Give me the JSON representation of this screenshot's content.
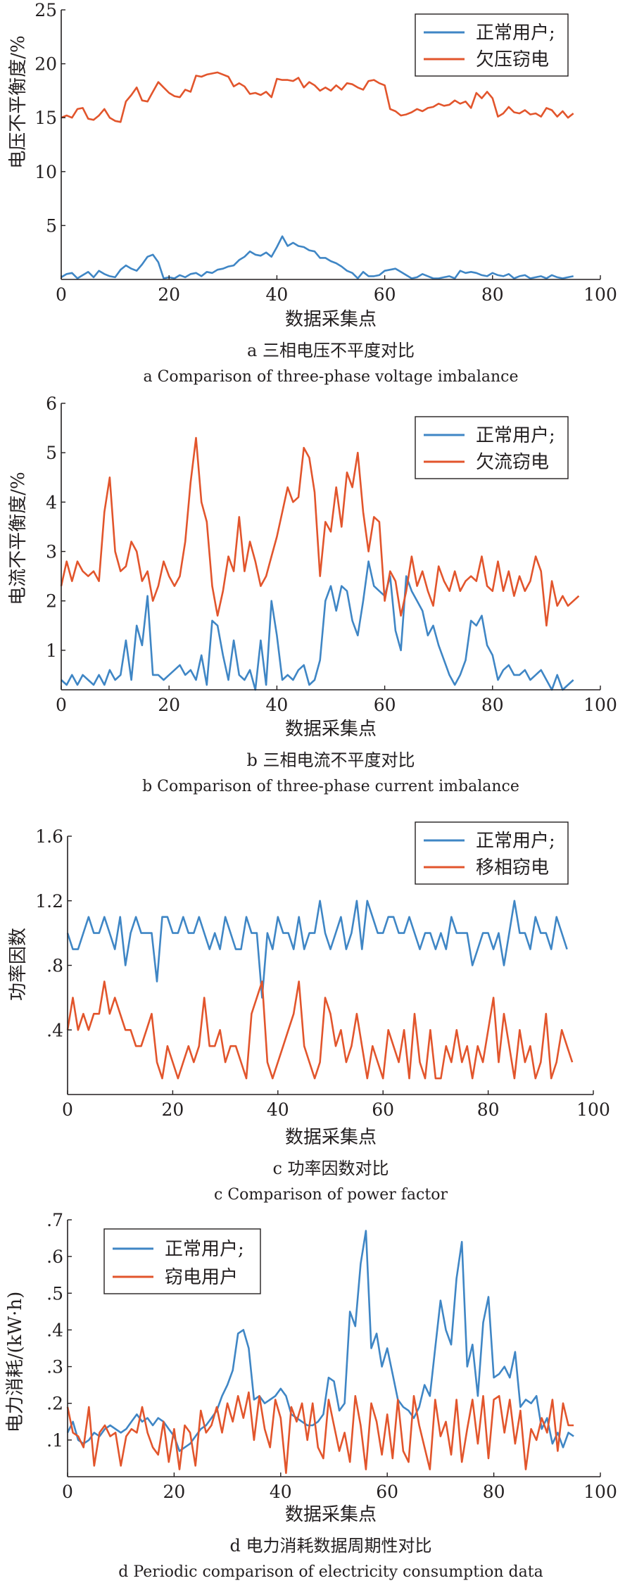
{
  "colors": {
    "blue": "#3f86c5",
    "red": "#e2552c",
    "axis": "#231f20"
  },
  "charts": [
    {
      "captions": {
        "cn": "a  三相电压不平度对比",
        "en": "a  Comparison of three-phase voltage imbalance"
      },
      "legend_position": "top-right"
    },
    {
      "captions": {
        "cn": "b  三相电流不平度对比",
        "en": "b  Comparison of three-phase current imbalance"
      },
      "legend_position": "top-right"
    },
    {
      "captions": {
        "cn": "c  功率因数对比",
        "en": "c  Comparison of power factor"
      },
      "legend_position": "top-right"
    },
    {
      "captions": {
        "cn": "d  电力消耗数据周期性对比",
        "en": "d  Periodic comparison of electricity consumption data"
      },
      "legend_position": "top-left"
    }
  ],
  "chart_data": [
    {
      "type": "line",
      "title": "",
      "xlabel": "数据采集点",
      "ylabel": "电压不平衡度/%",
      "xlim": [
        0,
        100
      ],
      "ylim": [
        0,
        25
      ],
      "xticks": [
        0,
        20,
        40,
        60,
        80,
        100
      ],
      "yticks": [
        5,
        10,
        15,
        20,
        25
      ],
      "grid": false,
      "series": [
        {
          "name": "正常用户;",
          "color": "#3f86c5",
          "values": [
            0.2,
            0.5,
            0.6,
            0.1,
            0.4,
            0.7,
            0.2,
            0.8,
            0.5,
            0.3,
            0.2,
            0.9,
            1.3,
            1.0,
            0.8,
            1.4,
            2.1,
            2.3,
            1.6,
            0.1,
            0.2,
            0.1,
            0.4,
            0.2,
            0.5,
            0.6,
            0.3,
            0.7,
            0.6,
            0.9,
            1.0,
            1.2,
            1.3,
            1.8,
            2.1,
            2.6,
            2.3,
            2.2,
            2.5,
            2.1,
            3.0,
            4.0,
            3.1,
            3.4,
            3.1,
            3.0,
            2.7,
            2.6,
            2.0,
            2.0,
            1.7,
            1.5,
            1.2,
            0.8,
            0.6,
            0.1,
            0.7,
            0.3,
            0.3,
            0.4,
            0.8,
            0.9,
            1.0,
            0.7,
            0.4,
            0.1,
            0.2,
            0.5,
            0.3,
            0.1,
            0.1,
            0.2,
            0.3,
            0.1,
            0.8,
            0.6,
            0.7,
            0.6,
            0.4,
            0.3,
            0.6,
            0.4,
            0.3,
            0.5,
            0.1,
            0.3,
            0.4,
            0.1,
            0.2,
            0.3,
            0.1,
            0.4,
            0.2,
            0.1,
            0.2,
            0.3
          ]
        },
        {
          "name": "欠压窃电",
          "color": "#e2552c",
          "values": [
            15.0,
            15.2,
            15.0,
            15.8,
            15.9,
            14.9,
            14.8,
            15.2,
            15.8,
            15.0,
            14.7,
            14.6,
            16.5,
            17.1,
            17.8,
            16.6,
            16.5,
            17.4,
            18.3,
            17.8,
            17.3,
            17.0,
            16.9,
            17.6,
            17.4,
            18.9,
            18.8,
            19.0,
            19.1,
            19.2,
            19.0,
            18.8,
            17.9,
            18.2,
            17.9,
            17.2,
            17.3,
            17.1,
            17.4,
            16.9,
            18.6,
            18.5,
            18.5,
            18.4,
            18.7,
            17.8,
            18.3,
            18.0,
            17.5,
            17.8,
            17.5,
            18.0,
            17.6,
            18.2,
            18.1,
            17.8,
            17.6,
            18.4,
            18.5,
            18.2,
            18.0,
            15.8,
            15.6,
            15.2,
            15.3,
            15.5,
            15.8,
            15.6,
            15.9,
            16.0,
            16.3,
            16.1,
            16.2,
            16.6,
            16.3,
            16.5,
            15.9,
            17.3,
            16.8,
            17.4,
            16.8,
            15.1,
            15.4,
            16.0,
            15.5,
            15.4,
            15.7,
            15.3,
            15.4,
            15.1,
            15.9,
            15.7,
            15.1,
            15.6,
            15.0,
            15.4
          ]
        }
      ]
    },
    {
      "type": "line",
      "title": "",
      "xlabel": "数据采集点",
      "ylabel": "电流不平衡度/%",
      "xlim": [
        0,
        100
      ],
      "ylim": [
        0.2,
        6
      ],
      "xticks": [
        0,
        20,
        40,
        60,
        80,
        100
      ],
      "yticks": [
        1,
        2,
        3,
        4,
        5,
        6
      ],
      "grid": false,
      "series": [
        {
          "name": "正常用户;",
          "color": "#3f86c5",
          "values": [
            0.4,
            0.3,
            0.5,
            0.3,
            0.5,
            0.4,
            0.3,
            0.5,
            0.3,
            0.6,
            0.4,
            0.5,
            1.2,
            0.4,
            1.5,
            1.1,
            2.1,
            0.5,
            0.5,
            0.4,
            0.5,
            0.6,
            0.7,
            0.5,
            0.6,
            0.4,
            0.9,
            0.3,
            1.6,
            1.5,
            0.9,
            0.4,
            1.2,
            0.5,
            0.4,
            0.6,
            0.2,
            1.2,
            0.3,
            2.0,
            1.3,
            0.4,
            0.5,
            0.4,
            0.6,
            0.7,
            0.3,
            0.4,
            0.8,
            2.0,
            2.3,
            1.8,
            2.3,
            2.2,
            1.6,
            1.3,
            2.0,
            2.8,
            2.3,
            2.2,
            2.1,
            2.5,
            1.4,
            1.0,
            2.5,
            2.2,
            2.0,
            1.8,
            1.3,
            1.5,
            1.1,
            0.8,
            0.5,
            0.3,
            0.5,
            0.8,
            1.6,
            1.5,
            1.7,
            1.1,
            0.9,
            0.4,
            0.6,
            0.7,
            0.5,
            0.5,
            0.6,
            0.4,
            0.5,
            0.6,
            0.4,
            0.2,
            0.5,
            0.2,
            0.3,
            0.4
          ]
        },
        {
          "name": "欠流窃电",
          "color": "#e2552c",
          "values": [
            2.3,
            2.8,
            2.4,
            2.8,
            2.6,
            2.5,
            2.6,
            2.4,
            3.8,
            4.5,
            3.0,
            2.6,
            2.7,
            3.2,
            3.0,
            2.4,
            2.6,
            2.0,
            2.3,
            2.8,
            2.5,
            2.3,
            2.5,
            3.2,
            4.4,
            5.3,
            4.0,
            3.6,
            2.3,
            1.7,
            2.2,
            2.9,
            2.6,
            3.7,
            2.6,
            3.2,
            2.8,
            2.3,
            2.5,
            2.9,
            3.3,
            3.8,
            4.3,
            4.0,
            4.1,
            5.1,
            4.9,
            4.2,
            2.5,
            3.6,
            3.4,
            4.3,
            3.5,
            4.6,
            4.3,
            5.0,
            3.8,
            3.0,
            3.7,
            3.6,
            2.0,
            2.6,
            2.4,
            1.7,
            2.2,
            2.9,
            2.3,
            2.6,
            2.2,
            1.9,
            2.7,
            2.4,
            2.2,
            2.6,
            2.2,
            2.4,
            2.5,
            2.4,
            2.9,
            2.3,
            2.2,
            2.8,
            2.2,
            2.6,
            2.1,
            2.5,
            2.2,
            2.4,
            2.9,
            2.6,
            1.5,
            2.4,
            1.9,
            2.1,
            1.9,
            2.0,
            2.1
          ]
        }
      ]
    },
    {
      "type": "line",
      "title": "",
      "xlabel": "数据采集点",
      "ylabel": "功率因数",
      "xlim": [
        0,
        100
      ],
      "ylim": [
        0,
        1.6
      ],
      "xticks": [
        0,
        20,
        40,
        60,
        80,
        100
      ],
      "yticks": [
        0.4,
        0.8,
        1.2,
        1.6
      ],
      "grid": false,
      "series": [
        {
          "name": "正常用户;",
          "color": "#3f86c5",
          "values": [
            1.0,
            0.9,
            0.9,
            1.0,
            1.1,
            1.0,
            1.0,
            1.1,
            1.0,
            0.9,
            1.1,
            0.8,
            1.0,
            1.1,
            1.0,
            1.0,
            1.0,
            0.7,
            1.1,
            1.1,
            1.0,
            1.0,
            1.1,
            1.0,
            1.0,
            1.1,
            1.0,
            0.9,
            1.0,
            0.9,
            1.1,
            1.0,
            0.9,
            0.9,
            1.1,
            1.0,
            1.0,
            0.6,
            1.0,
            0.9,
            1.1,
            1.0,
            1.0,
            0.9,
            1.1,
            0.9,
            1.0,
            1.0,
            1.2,
            1.0,
            0.9,
            1.0,
            1.1,
            0.9,
            1.0,
            1.2,
            0.9,
            1.2,
            1.1,
            1.0,
            1.0,
            1.1,
            1.1,
            1.0,
            1.0,
            1.1,
            1.0,
            0.9,
            1.0,
            1.0,
            0.9,
            1.0,
            0.9,
            1.1,
            1.0,
            1.0,
            1.0,
            0.8,
            0.9,
            1.0,
            1.0,
            0.9,
            1.0,
            0.8,
            1.0,
            1.2,
            1.0,
            1.0,
            0.9,
            1.1,
            1.0,
            1.0,
            0.9,
            1.1,
            1.0,
            0.9
          ]
        },
        {
          "name": "移相窃电",
          "color": "#e2552c",
          "values": [
            0.4,
            0.6,
            0.4,
            0.5,
            0.4,
            0.5,
            0.5,
            0.7,
            0.5,
            0.6,
            0.5,
            0.4,
            0.4,
            0.3,
            0.3,
            0.4,
            0.5,
            0.2,
            0.1,
            0.3,
            0.2,
            0.1,
            0.2,
            0.3,
            0.2,
            0.3,
            0.6,
            0.3,
            0.3,
            0.4,
            0.2,
            0.3,
            0.3,
            0.2,
            0.1,
            0.5,
            0.6,
            0.7,
            0.2,
            0.1,
            0.2,
            0.3,
            0.4,
            0.5,
            0.7,
            0.3,
            0.2,
            0.1,
            0.2,
            0.6,
            0.5,
            0.3,
            0.4,
            0.2,
            0.3,
            0.5,
            0.3,
            0.1,
            0.3,
            0.2,
            0.1,
            0.4,
            0.3,
            0.2,
            0.4,
            0.1,
            0.5,
            0.2,
            0.1,
            0.4,
            0.1,
            0.1,
            0.3,
            0.2,
            0.4,
            0.2,
            0.3,
            0.1,
            0.3,
            0.2,
            0.4,
            0.6,
            0.2,
            0.5,
            0.3,
            0.1,
            0.4,
            0.2,
            0.3,
            0.1,
            0.2,
            0.5,
            0.1,
            0.2,
            0.4,
            0.3,
            0.2
          ]
        }
      ]
    },
    {
      "type": "line",
      "title": "",
      "xlabel": "数据采集点",
      "ylabel": "电力消耗/(kW·h)",
      "xlim": [
        0,
        100
      ],
      "ylim": [
        0,
        0.7
      ],
      "xticks": [
        0,
        20,
        40,
        60,
        80,
        100
      ],
      "yticks": [
        0.1,
        0.2,
        0.3,
        0.4,
        0.5,
        0.6,
        0.7
      ],
      "grid": false,
      "series": [
        {
          "name": "正常用户;",
          "color": "#3f86c5",
          "values": [
            0.12,
            0.15,
            0.1,
            0.09,
            0.1,
            0.12,
            0.11,
            0.13,
            0.14,
            0.13,
            0.12,
            0.13,
            0.15,
            0.17,
            0.15,
            0.16,
            0.14,
            0.16,
            0.15,
            0.13,
            0.11,
            0.07,
            0.08,
            0.09,
            0.11,
            0.13,
            0.14,
            0.16,
            0.18,
            0.22,
            0.25,
            0.29,
            0.39,
            0.4,
            0.35,
            0.21,
            0.22,
            0.2,
            0.21,
            0.22,
            0.24,
            0.22,
            0.17,
            0.16,
            0.15,
            0.14,
            0.14,
            0.15,
            0.17,
            0.27,
            0.26,
            0.18,
            0.2,
            0.45,
            0.41,
            0.58,
            0.67,
            0.35,
            0.39,
            0.3,
            0.35,
            0.28,
            0.21,
            0.19,
            0.18,
            0.16,
            0.19,
            0.25,
            0.22,
            0.35,
            0.48,
            0.4,
            0.36,
            0.54,
            0.64,
            0.3,
            0.36,
            0.22,
            0.42,
            0.49,
            0.27,
            0.28,
            0.3,
            0.27,
            0.34,
            0.19,
            0.21,
            0.2,
            0.22,
            0.13,
            0.16,
            0.09,
            0.12,
            0.08,
            0.12,
            0.11
          ]
        },
        {
          "name": "窃电用户",
          "color": "#e2552c",
          "values": [
            0.19,
            0.12,
            0.11,
            0.08,
            0.19,
            0.03,
            0.12,
            0.14,
            0.11,
            0.12,
            0.03,
            0.11,
            0.13,
            0.12,
            0.19,
            0.12,
            0.08,
            0.06,
            0.15,
            0.04,
            0.13,
            0.02,
            0.14,
            0.12,
            0.03,
            0.18,
            0.12,
            0.14,
            0.19,
            0.12,
            0.2,
            0.15,
            0.22,
            0.16,
            0.23,
            0.1,
            0.22,
            0.13,
            0.08,
            0.21,
            0.16,
            0.01,
            0.19,
            0.15,
            0.2,
            0.1,
            0.2,
            0.08,
            0.05,
            0.21,
            0.14,
            0.07,
            0.12,
            0.04,
            0.22,
            0.14,
            0.02,
            0.2,
            0.15,
            0.06,
            0.17,
            0.05,
            0.21,
            0.07,
            0.04,
            0.22,
            0.14,
            0.08,
            0.02,
            0.21,
            0.11,
            0.15,
            0.06,
            0.21,
            0.04,
            0.13,
            0.21,
            0.09,
            0.22,
            0.05,
            0.21,
            0.22,
            0.12,
            0.21,
            0.09,
            0.18,
            0.02,
            0.13,
            0.1,
            0.16,
            0.12,
            0.21,
            0.07,
            0.2,
            0.14,
            0.14
          ]
        }
      ]
    }
  ]
}
